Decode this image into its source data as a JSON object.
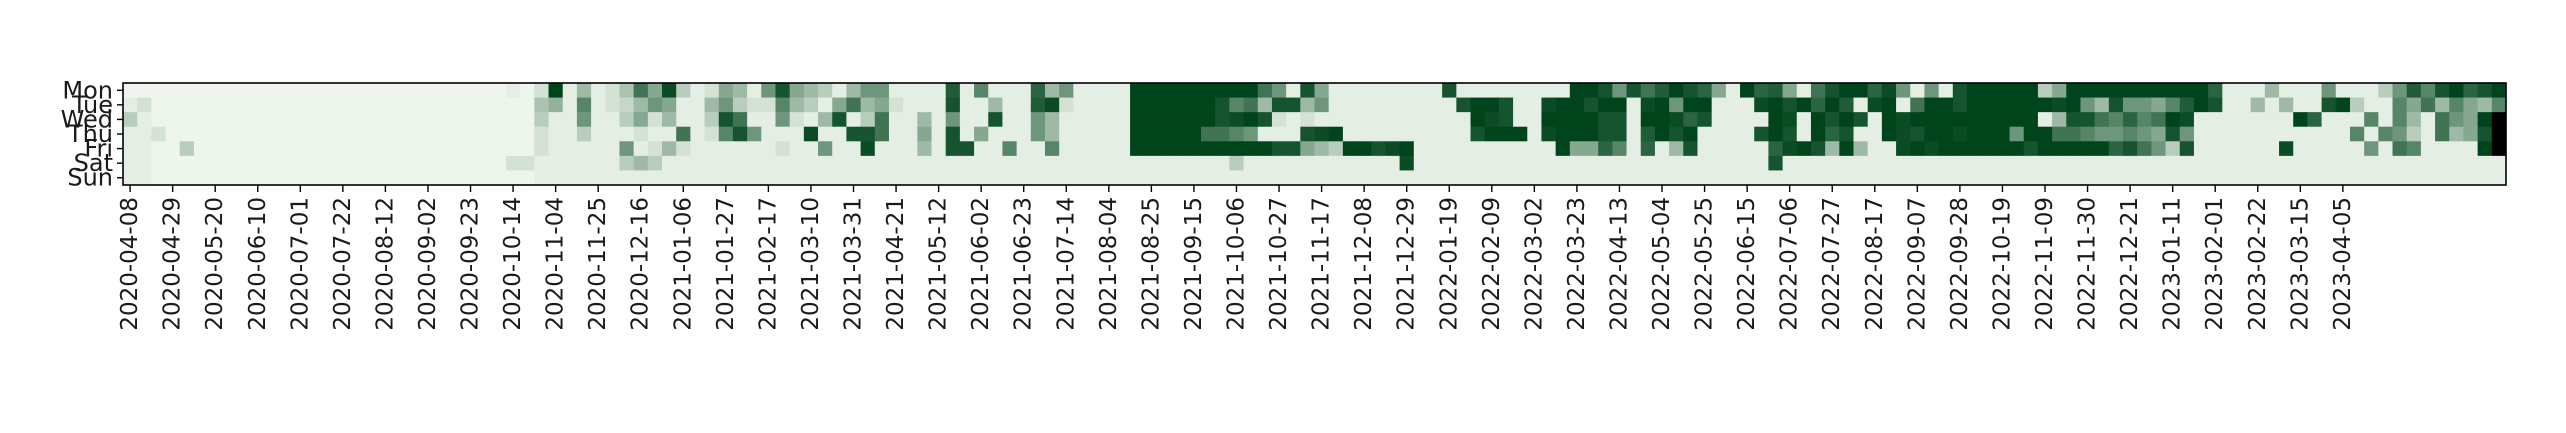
{
  "chart_data": {
    "type": "heatmap",
    "title": "",
    "xlabel": "",
    "ylabel": "",
    "colormap": "Greens",
    "color_low": "#f7fcf5",
    "color_high": "#00441b",
    "value_range": [
      0,
      1
    ],
    "y_categories": [
      "Mon",
      "Tue",
      "Wed",
      "Thu",
      "Fri",
      "Sat",
      "Sun"
    ],
    "x_tick_labels": [
      "2020-04-08",
      "2020-04-29",
      "2020-05-20",
      "2020-06-10",
      "2020-07-01",
      "2020-07-22",
      "2020-08-12",
      "2020-09-02",
      "2020-09-23",
      "2020-10-14",
      "2020-11-04",
      "2020-11-25",
      "2020-12-16",
      "2021-01-06",
      "2021-01-27",
      "2021-02-17",
      "2021-03-10",
      "2021-03-31",
      "2021-04-21",
      "2021-05-12",
      "2021-06-02",
      "2021-06-23",
      "2021-07-14",
      "2021-08-04",
      "2021-08-25",
      "2021-09-15",
      "2021-10-06",
      "2021-10-27",
      "2021-11-17",
      "2021-12-08",
      "2021-12-29",
      "2022-01-19",
      "2022-02-09",
      "2022-03-02",
      "2022-03-23",
      "2022-04-13",
      "2022-05-04",
      "2022-05-25",
      "2022-06-15",
      "2022-07-06",
      "2022-07-27",
      "2022-08-17",
      "2022-09-07",
      "2022-09-28",
      "2022-10-19",
      "2022-11-09",
      "2022-11-30",
      "2022-12-21",
      "2023-01-11",
      "2023-02-01",
      "2023-02-22",
      "2023-03-15",
      "2023-04-05"
    ],
    "weeks_per_tick": 3,
    "values": [
      [
        0.02,
        0.02,
        0.02,
        0.02,
        0.02,
        0.02,
        0.02,
        0.02,
        0.02,
        0.02,
        0.02,
        0.02,
        0.02,
        0.02,
        0.02,
        0.02,
        0.02,
        0.02,
        0.02,
        0.02,
        0.02,
        0.02,
        0.02,
        0.02,
        0.02,
        0.02,
        0.02,
        0.05,
        0.02,
        0.1,
        1.0,
        0.05,
        0.3,
        0.05,
        0.1,
        0.25,
        0.7,
        0.4,
        0.95,
        0.2,
        0.05,
        0.1,
        0.4,
        0.3,
        0.05,
        0.5,
        0.9,
        0.4,
        0.3,
        0.2,
        0.05,
        0.3,
        0.5,
        0.5,
        0.05,
        0.05,
        0.05,
        0.05,
        0.85,
        0.05,
        0.6,
        0.05,
        0.05,
        0.05,
        0.8,
        0.3,
        0.5,
        0.05,
        0.05,
        0.05,
        0.05,
        1.0,
        1.0,
        1.0,
        1.0,
        1.0,
        1.0,
        1.0,
        1.0,
        1.0,
        0.7,
        0.5,
        0.05,
        0.9,
        0.4,
        0.05,
        0.05,
        0.05,
        0.05,
        0.05,
        0.05,
        0.05,
        0.05,
        0.9,
        0.05,
        0.05,
        0.05,
        0.05,
        0.05,
        0.05,
        0.05,
        0.05,
        1.0,
        1.0,
        0.9,
        0.5,
        0.9,
        0.7,
        0.85,
        1.0,
        0.9,
        0.8,
        0.4,
        0.05,
        1.0,
        0.8,
        0.85,
        0.4,
        0.05,
        0.7,
        0.9,
        1.0,
        1.0,
        0.8,
        0.95,
        0.5,
        0.05,
        0.5,
        0.05,
        0.9,
        1.0,
        1.0,
        1.0,
        1.0,
        1.0,
        0.2,
        0.4,
        1.0,
        1.0,
        1.0,
        1.0,
        1.0,
        1.0,
        1.0,
        1.0,
        1.0,
        1.0,
        0.8,
        0.05,
        0.05,
        0.05,
        0.3,
        0.05,
        0.05,
        0.05,
        0.5,
        0.05,
        0.05,
        0.05,
        0.2,
        0.5,
        0.85,
        0.6,
        0.9,
        1.0,
        0.8,
        0.9,
        1.0
      ],
      [
        0.05,
        0.1,
        0.02,
        0.02,
        0.02,
        0.02,
        0.02,
        0.02,
        0.02,
        0.02,
        0.02,
        0.02,
        0.02,
        0.02,
        0.02,
        0.02,
        0.02,
        0.02,
        0.02,
        0.02,
        0.02,
        0.02,
        0.02,
        0.02,
        0.02,
        0.02,
        0.02,
        0.02,
        0.02,
        0.25,
        0.35,
        0.05,
        0.6,
        0.05,
        0.1,
        0.15,
        0.3,
        0.5,
        0.4,
        0.05,
        0.05,
        0.3,
        0.5,
        0.2,
        0.1,
        0.1,
        0.6,
        0.3,
        0.2,
        0.05,
        0.4,
        0.7,
        0.3,
        0.4,
        0.1,
        0.05,
        0.05,
        0.05,
        0.9,
        0.05,
        0.05,
        0.3,
        0.05,
        0.05,
        0.85,
        0.95,
        0.1,
        0.05,
        0.05,
        0.05,
        0.05,
        1.0,
        1.0,
        1.0,
        1.0,
        1.0,
        1.0,
        0.9,
        0.6,
        0.7,
        0.3,
        0.9,
        0.9,
        0.3,
        0.5,
        0.05,
        0.05,
        0.05,
        0.05,
        0.05,
        0.05,
        0.05,
        0.05,
        0.05,
        0.9,
        1.0,
        1.0,
        0.9,
        0.05,
        0.05,
        0.95,
        1.0,
        1.0,
        0.9,
        1.0,
        1.0,
        0.05,
        0.95,
        1.0,
        0.5,
        1.0,
        1.0,
        0.05,
        0.05,
        0.05,
        0.95,
        1.0,
        0.9,
        1.0,
        0.8,
        1.0,
        0.85,
        0.05,
        0.95,
        1.0,
        0.05,
        0.7,
        1.0,
        1.0,
        0.9,
        1.0,
        1.0,
        1.0,
        1.0,
        1.0,
        1.0,
        0.95,
        1.0,
        0.5,
        0.3,
        0.9,
        0.5,
        0.5,
        0.4,
        0.6,
        0.85,
        1.0,
        0.9,
        0.05,
        0.05,
        0.3,
        0.05,
        0.3,
        0.05,
        0.05,
        0.9,
        1.0,
        0.2,
        0.05,
        0.05,
        0.6,
        0.4,
        0.7,
        0.3,
        0.6,
        0.4,
        0.3,
        0.6,
        0.8
      ],
      [
        0.2,
        0.05,
        0.02,
        0.02,
        0.02,
        0.02,
        0.02,
        0.02,
        0.02,
        0.02,
        0.02,
        0.02,
        0.02,
        0.02,
        0.02,
        0.02,
        0.02,
        0.02,
        0.02,
        0.02,
        0.02,
        0.02,
        0.02,
        0.02,
        0.02,
        0.02,
        0.02,
        0.02,
        0.02,
        0.2,
        0.05,
        0.05,
        0.5,
        0.05,
        0.05,
        0.2,
        0.4,
        0.1,
        0.3,
        0.05,
        0.05,
        0.2,
        0.9,
        0.7,
        0.05,
        0.05,
        0.5,
        0.1,
        0.05,
        0.3,
        0.9,
        0.05,
        0.2,
        0.7,
        0.05,
        0.05,
        0.3,
        0.05,
        0.5,
        0.05,
        0.05,
        0.9,
        0.05,
        0.05,
        0.5,
        0.3,
        0.05,
        0.05,
        0.05,
        0.05,
        0.05,
        1.0,
        1.0,
        1.0,
        1.0,
        1.0,
        1.0,
        0.9,
        0.95,
        1.0,
        0.9,
        0.1,
        0.05,
        0.1,
        0.05,
        0.05,
        0.05,
        0.05,
        0.05,
        0.05,
        0.05,
        0.05,
        0.05,
        0.05,
        0.05,
        1.0,
        0.95,
        0.9,
        0.05,
        0.05,
        1.0,
        1.0,
        1.0,
        1.0,
        0.9,
        0.9,
        0.05,
        1.0,
        1.0,
        0.95,
        0.8,
        0.9,
        0.05,
        0.05,
        0.05,
        0.05,
        1.0,
        0.95,
        0.05,
        1.0,
        0.9,
        1.0,
        0.9,
        0.05,
        1.0,
        0.95,
        1.0,
        1.0,
        1.0,
        1.0,
        1.0,
        1.0,
        1.0,
        1.0,
        1.0,
        0.05,
        0.3,
        0.9,
        0.9,
        0.7,
        0.6,
        0.8,
        0.6,
        0.7,
        1.0,
        0.95,
        0.05,
        0.05,
        0.05,
        0.05,
        0.05,
        0.05,
        0.05,
        1.0,
        0.8,
        0.05,
        0.05,
        0.05,
        0.6,
        0.05,
        0.6,
        0.3,
        0.05,
        0.7,
        0.5,
        0.4,
        1.0
      ],
      [
        0.05,
        0.05,
        0.1,
        0.02,
        0.02,
        0.02,
        0.02,
        0.02,
        0.02,
        0.02,
        0.02,
        0.02,
        0.02,
        0.02,
        0.02,
        0.02,
        0.02,
        0.02,
        0.02,
        0.02,
        0.02,
        0.02,
        0.02,
        0.02,
        0.02,
        0.02,
        0.02,
        0.02,
        0.02,
        0.1,
        0.05,
        0.05,
        0.2,
        0.05,
        0.05,
        0.05,
        0.1,
        0.05,
        0.05,
        0.7,
        0.05,
        0.1,
        0.6,
        0.9,
        0.5,
        0.05,
        0.05,
        0.05,
        0.95,
        0.05,
        0.05,
        0.9,
        0.9,
        0.7,
        0.05,
        0.05,
        0.4,
        0.05,
        0.9,
        0.05,
        0.4,
        0.05,
        0.05,
        0.05,
        0.5,
        0.3,
        0.05,
        0.05,
        0.05,
        0.05,
        0.05,
        1.0,
        1.0,
        1.0,
        1.0,
        1.0,
        0.7,
        0.7,
        0.6,
        0.5,
        0.05,
        0.05,
        0.05,
        0.9,
        0.95,
        1.0,
        0.05,
        0.05,
        0.05,
        0.05,
        0.05,
        0.05,
        0.05,
        0.05,
        0.05,
        0.9,
        1.0,
        1.0,
        1.0,
        0.05,
        0.95,
        1.0,
        1.0,
        1.0,
        0.9,
        0.9,
        0.05,
        0.85,
        1.0,
        0.9,
        1.0,
        0.05,
        0.05,
        0.05,
        0.05,
        0.9,
        1.0,
        0.9,
        0.05,
        1.0,
        0.8,
        0.9,
        0.05,
        0.05,
        1.0,
        0.95,
        0.9,
        1.0,
        1.0,
        0.95,
        1.0,
        1.0,
        1.0,
        0.5,
        1.0,
        1.0,
        0.7,
        0.7,
        0.6,
        0.5,
        0.5,
        0.6,
        0.5,
        0.4,
        0.9,
        0.5,
        0.05,
        0.05,
        0.05,
        0.05,
        0.05,
        0.05,
        0.05,
        0.05,
        0.05,
        0.05,
        0.05,
        0.6,
        0.05,
        0.6,
        0.5,
        0.2,
        0.05,
        0.7,
        0.3,
        0.4,
        0.9
      ],
      [
        0.05,
        0.05,
        0.02,
        0.02,
        0.2,
        0.02,
        0.02,
        0.02,
        0.02,
        0.02,
        0.02,
        0.02,
        0.02,
        0.02,
        0.02,
        0.02,
        0.02,
        0.02,
        0.02,
        0.02,
        0.02,
        0.02,
        0.02,
        0.02,
        0.02,
        0.02,
        0.02,
        0.02,
        0.02,
        0.1,
        0.05,
        0.05,
        0.05,
        0.05,
        0.05,
        0.5,
        0.05,
        0.1,
        0.3,
        0.1,
        0.05,
        0.05,
        0.05,
        0.05,
        0.05,
        0.05,
        0.1,
        0.05,
        0.05,
        0.5,
        0.05,
        0.05,
        0.95,
        0.05,
        0.05,
        0.05,
        0.3,
        0.05,
        0.9,
        0.9,
        0.05,
        0.05,
        0.6,
        0.05,
        0.05,
        0.6,
        0.05,
        0.05,
        0.05,
        0.05,
        0.05,
        1.0,
        1.0,
        1.0,
        1.0,
        1.0,
        1.0,
        1.0,
        1.0,
        1.0,
        1.0,
        0.9,
        0.9,
        0.4,
        0.3,
        0.2,
        1.0,
        1.0,
        0.9,
        0.95,
        1.0,
        0.05,
        0.05,
        0.05,
        0.05,
        0.05,
        0.05,
        0.05,
        0.05,
        0.05,
        0.05,
        1.0,
        0.4,
        0.4,
        0.8,
        0.6,
        0.05,
        0.8,
        0.05,
        0.3,
        0.9,
        0.05,
        0.05,
        0.05,
        0.05,
        0.05,
        0.8,
        0.95,
        1.0,
        0.9,
        0.3,
        1.0,
        0.3,
        0.05,
        0.05,
        0.95,
        1.0,
        0.95,
        1.0,
        1.0,
        1.0,
        1.0,
        1.0,
        1.0,
        0.9,
        1.0,
        1.0,
        1.0,
        1.0,
        1.0,
        0.8,
        0.9,
        0.7,
        0.5,
        0.2,
        0.9,
        0.05,
        0.05,
        0.05,
        0.05,
        0.05,
        0.05,
        0.95,
        0.05,
        0.05,
        0.05,
        0.05,
        0.05,
        0.5,
        0.05,
        0.7,
        0.6,
        0.05,
        0.05,
        0.05,
        0.05,
        1.0
      ],
      [
        0.05,
        0.05,
        0.02,
        0.02,
        0.02,
        0.02,
        0.02,
        0.02,
        0.02,
        0.02,
        0.02,
        0.02,
        0.02,
        0.02,
        0.02,
        0.02,
        0.02,
        0.02,
        0.02,
        0.02,
        0.02,
        0.02,
        0.02,
        0.02,
        0.02,
        0.02,
        0.02,
        0.1,
        0.1,
        0.05,
        0.05,
        0.05,
        0.05,
        0.05,
        0.05,
        0.2,
        0.3,
        0.2,
        0.05,
        0.05,
        0.05,
        0.05,
        0.05,
        0.05,
        0.05,
        0.05,
        0.05,
        0.05,
        0.05,
        0.05,
        0.05,
        0.05,
        0.05,
        0.05,
        0.05,
        0.05,
        0.05,
        0.05,
        0.05,
        0.05,
        0.05,
        0.05,
        0.05,
        0.05,
        0.05,
        0.05,
        0.05,
        0.05,
        0.05,
        0.05,
        0.05,
        0.05,
        0.05,
        0.05,
        0.05,
        0.05,
        0.05,
        0.05,
        0.2,
        0.05,
        0.05,
        0.05,
        0.05,
        0.05,
        0.05,
        0.05,
        0.05,
        0.05,
        0.05,
        0.05,
        0.95,
        0.05,
        0.05,
        0.05,
        0.05,
        0.05,
        0.05,
        0.05,
        0.05,
        0.05,
        0.05,
        0.05,
        0.05,
        0.05,
        0.05,
        0.05,
        0.05,
        0.05,
        0.05,
        0.05,
        0.05,
        0.05,
        0.05,
        0.05,
        0.05,
        0.05,
        0.9,
        0.05,
        0.05,
        0.05,
        0.05,
        0.05,
        0.05,
        0.05,
        0.05,
        0.05,
        0.05,
        0.05,
        0.05,
        0.05,
        0.05,
        0.05,
        0.05,
        0.05,
        0.05,
        0.05,
        0.05,
        0.05,
        0.05,
        0.05,
        0.05,
        0.05,
        0.05,
        0.05,
        0.05,
        0.05,
        0.05,
        0.05,
        0.05,
        0.05,
        0.05,
        0.05,
        0.05,
        0.05,
        0.05,
        0.05,
        0.05,
        0.05,
        0.05,
        0.05,
        0.05,
        0.05,
        0.05,
        0.05,
        0.05,
        0.05,
        0.05,
        0.05,
        0.05,
        0.05
      ],
      [
        0.05,
        0.05,
        0.02,
        0.02,
        0.02,
        0.02,
        0.02,
        0.02,
        0.02,
        0.02,
        0.02,
        0.02,
        0.02,
        0.02,
        0.02,
        0.02,
        0.02,
        0.02,
        0.02,
        0.02,
        0.02,
        0.02,
        0.02,
        0.02,
        0.02,
        0.02,
        0.02,
        0.02,
        0.02,
        0.05,
        0.05,
        0.05,
        0.05,
        0.05,
        0.05,
        0.05,
        0.05,
        0.05,
        0.05,
        0.05,
        0.05,
        0.05,
        0.05,
        0.05,
        0.05,
        0.05,
        0.05,
        0.05,
        0.05,
        0.05,
        0.05,
        0.05,
        0.05,
        0.05,
        0.05,
        0.05,
        0.05,
        0.05,
        0.05,
        0.05,
        0.05,
        0.05,
        0.05,
        0.05,
        0.05,
        0.05,
        0.05,
        0.05,
        0.05,
        0.05,
        0.05,
        0.05,
        0.05,
        0.05,
        0.05,
        0.05,
        0.05,
        0.05,
        0.05,
        0.05,
        0.05,
        0.05,
        0.05,
        0.05,
        0.05,
        0.05,
        0.05,
        0.05,
        0.05,
        0.05,
        0.05,
        0.05,
        0.05,
        0.05,
        0.05,
        0.05,
        0.05,
        0.05,
        0.05,
        0.05,
        0.05,
        0.05,
        0.05,
        0.05,
        0.05,
        0.05,
        0.05,
        0.05,
        0.05,
        0.05,
        0.05,
        0.05,
        0.05,
        0.05,
        0.05,
        0.05,
        0.05,
        0.05,
        0.05,
        0.05,
        0.05,
        0.05,
        0.05,
        0.05,
        0.05,
        0.05,
        0.05,
        0.05,
        0.05,
        0.05,
        0.05,
        0.05,
        0.05,
        0.05,
        0.05,
        0.05,
        0.05,
        0.05,
        0.05,
        0.05,
        0.05,
        0.05,
        0.05,
        0.05,
        0.05,
        0.05,
        0.05,
        0.05,
        0.05,
        0.05,
        0.05,
        0.05,
        0.05,
        0.05,
        0.05,
        0.05,
        0.05,
        0.05,
        0.05,
        0.05,
        0.05,
        0.05,
        0.05,
        0.05,
        0.05,
        0.05,
        0.05,
        0.05,
        0.05,
        0.05,
        0.05
      ]
    ]
  }
}
